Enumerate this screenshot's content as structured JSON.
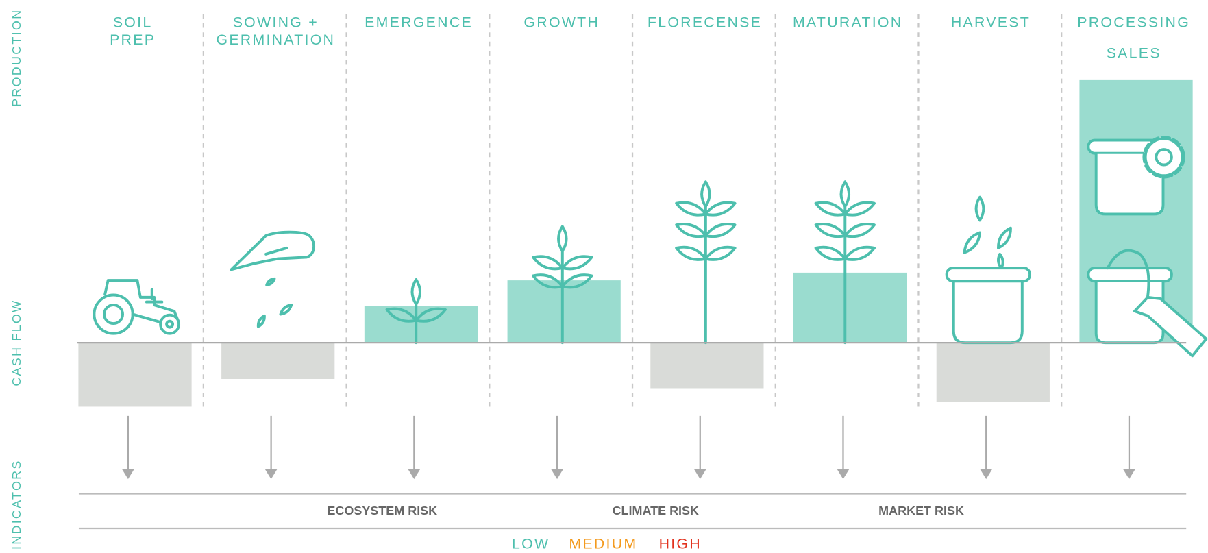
{
  "side_labels": [
    "PRODUCTION",
    "CASH FLOW",
    "INDICATORS"
  ],
  "stages": [
    {
      "label": [
        "SOIL",
        "PREP"
      ],
      "cash_flow": -83
    },
    {
      "label": [
        "SOWING +",
        "GERMINATION"
      ],
      "cash_flow": -47
    },
    {
      "label": [
        "EMERGENCE"
      ],
      "cash_flow": 48
    },
    {
      "label": [
        "GROWTH"
      ],
      "cash_flow": 81
    },
    {
      "label": [
        "FLORECENSE"
      ],
      "cash_flow": -59
    },
    {
      "label": [
        "MATURATION"
      ],
      "cash_flow": 91
    },
    {
      "label": [
        "HARVEST"
      ],
      "cash_flow": -77
    },
    {
      "label": [
        "PROCESSING",
        "SALES"
      ],
      "cash_flow": 341
    }
  ],
  "risks": [
    "ECOSYSTEM RISK",
    "CLIMATE RISK",
    "MARKET RISK"
  ],
  "legend": [
    {
      "label": "LOW",
      "color": "#4dbfad"
    },
    {
      "label": "MEDIUM",
      "color": "#f39a1e"
    },
    {
      "label": "HIGH",
      "color": "#e2321e"
    }
  ]
}
